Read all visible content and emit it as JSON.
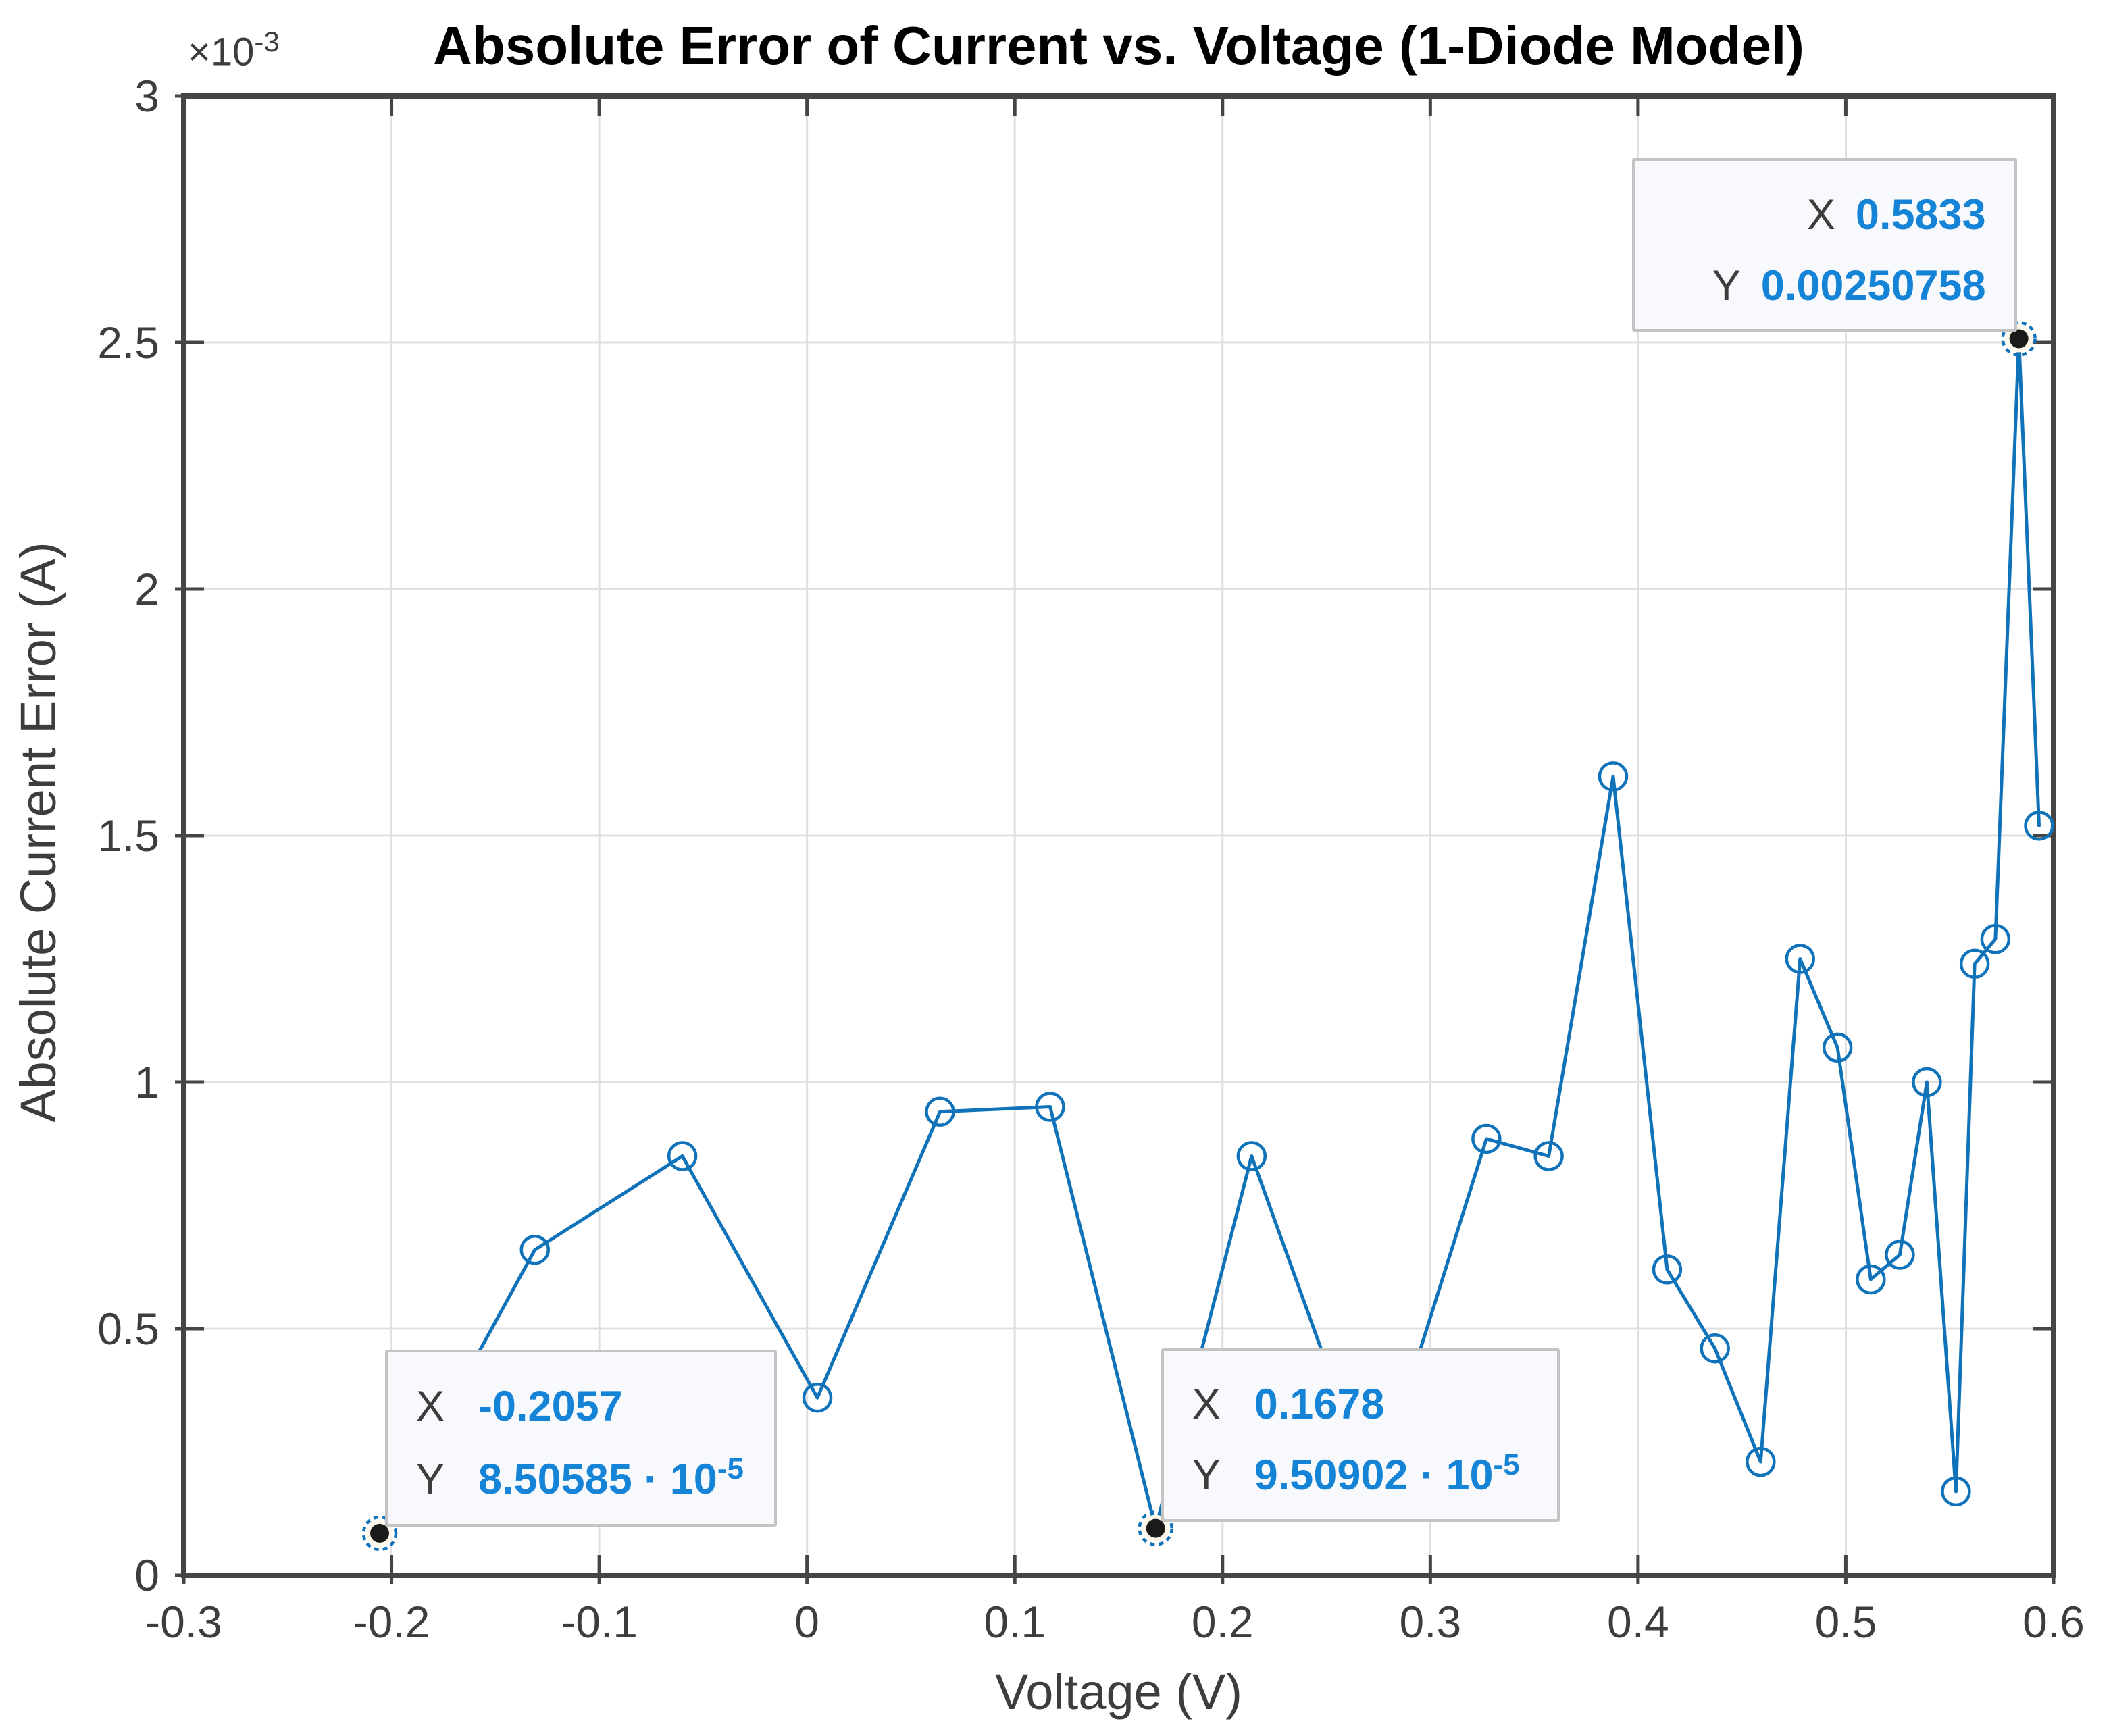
{
  "title": "Absolute Error of Current vs. Voltage (1-Diode Model)",
  "axes": {
    "xlabel": "Voltage (V)",
    "ylabel": "Absolute Current Error (A)",
    "exponent_base": "×10",
    "exponent_sup": "-3",
    "x_tick_labels": [
      "-0.3",
      "-0.2",
      "-0.1",
      "0",
      "0.1",
      "0.2",
      "0.3",
      "0.4",
      "0.5",
      "0.6"
    ],
    "x_tick_values": [
      -0.3,
      -0.2,
      -0.1,
      0,
      0.1,
      0.2,
      0.3,
      0.4,
      0.5,
      0.6
    ],
    "y_tick_labels": [
      "0",
      "0.5",
      "1",
      "1.5",
      "2",
      "2.5",
      "3"
    ],
    "y_tick_values_times_1e3": [
      0,
      0.5,
      1,
      1.5,
      2,
      2.5,
      3
    ],
    "xlim": [
      -0.3,
      0.6
    ],
    "ylim": [
      0,
      0.003
    ]
  },
  "chart_data": {
    "type": "line",
    "title": "Absolute Error of Current vs. Voltage (1-Diode Model)",
    "xlabel": "Voltage (V)",
    "ylabel": "Absolute Current Error (A)",
    "xlim": [
      -0.3,
      0.6
    ],
    "ylim": [
      0,
      0.003
    ],
    "y_axis_multiplier": "1e-3",
    "grid": true,
    "legend": "none",
    "series": [
      {
        "name": "absolute-current-error",
        "marker": "open-circle",
        "color": "#1072b9",
        "x": [
          -0.2057,
          -0.131,
          -0.06,
          0.005,
          0.064,
          0.117,
          0.1678,
          0.214,
          0.273,
          0.327,
          0.357,
          0.388,
          0.414,
          0.437,
          0.459,
          0.478,
          0.496,
          0.512,
          0.526,
          0.539,
          0.553,
          0.562,
          0.572,
          0.5833,
          0.593
        ],
        "y_times_1e3": [
          0.0850585,
          0.66,
          0.85,
          0.36,
          0.94,
          0.95,
          0.0950902,
          0.85,
          0.16,
          0.885,
          0.85,
          1.62,
          0.62,
          0.46,
          0.23,
          1.25,
          1.07,
          0.6,
          0.65,
          1.0,
          0.17,
          1.24,
          1.29,
          2.50758,
          1.52
        ]
      }
    ],
    "highlighted_points": [
      {
        "x": -0.2057,
        "y": 8.50585e-05
      },
      {
        "x": 0.1678,
        "y": 9.50902e-05
      },
      {
        "x": 0.5833,
        "y": 0.00250758
      }
    ]
  },
  "datatips": [
    {
      "point_index": 0,
      "align": "left",
      "x_label": "X",
      "x_value": "-0.2057",
      "y_label": "Y",
      "y_value": "8.50585",
      "y_suffix": " · 10",
      "y_sup": "-5"
    },
    {
      "point_index": 6,
      "align": "left",
      "x_label": "X",
      "x_value": "0.1678",
      "y_label": "Y",
      "y_value": "9.50902",
      "y_suffix": " · 10",
      "y_sup": "-5"
    },
    {
      "point_index": 23,
      "align": "right",
      "x_label": "X",
      "x_value": "0.5833",
      "y_label": "Y",
      "y_value": "0.00250758",
      "y_suffix": "",
      "y_sup": ""
    }
  ],
  "colors": {
    "line": "#1072b9",
    "axis": "#454545",
    "grid": "#e0e0e0",
    "tick_text": "#3d3d3d",
    "tip_value": "#1583d6",
    "tip_border": "#c4c4c4",
    "tip_bg": "#f8f9fc",
    "datatip_dot": "#1a1a1a",
    "datatip_halo": "#fdf8ea"
  }
}
